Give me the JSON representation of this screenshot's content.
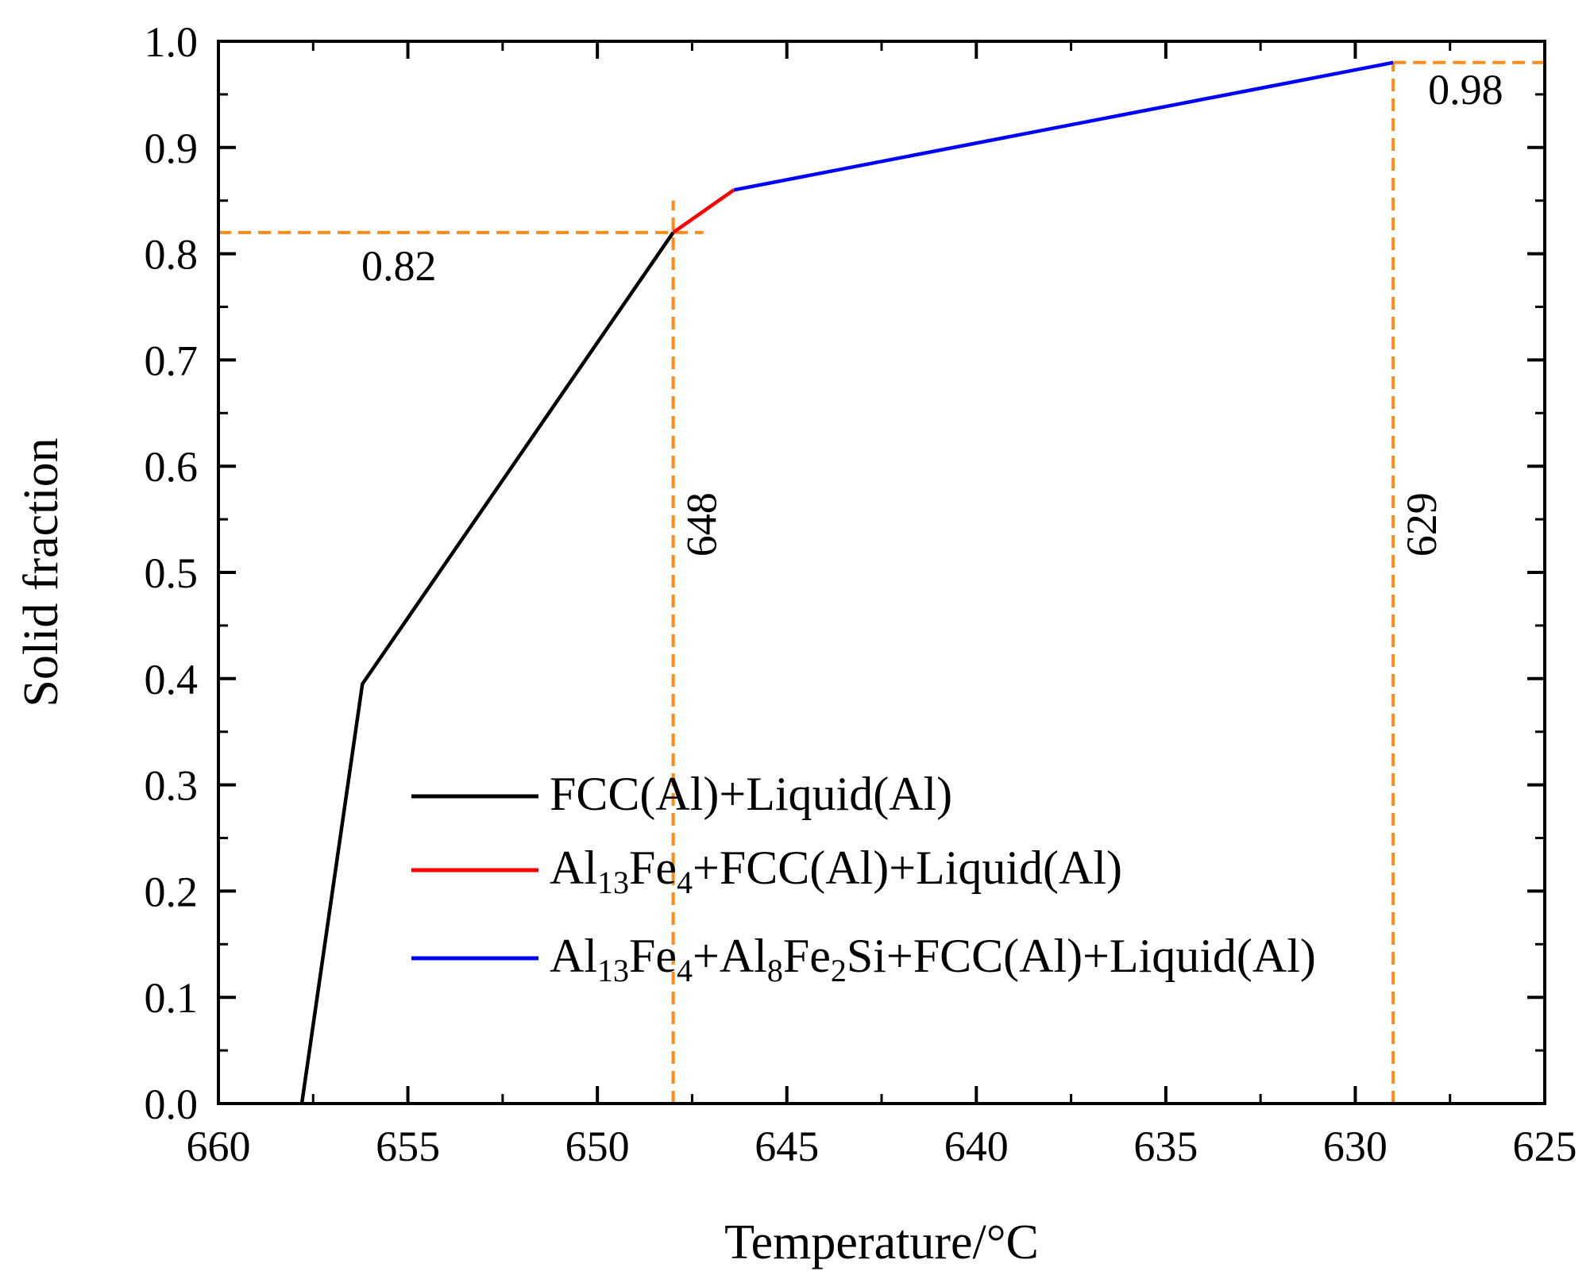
{
  "chart_data": {
    "type": "line",
    "title": "",
    "xlabel": "Temperature/°C",
    "ylabel": "Solid fraction",
    "xlim": [
      660,
      625
    ],
    "ylim": [
      0.0,
      1.0
    ],
    "xticks": [
      "660",
      "655",
      "650",
      "645",
      "640",
      "635",
      "630",
      "625"
    ],
    "yticks": [
      "0.0",
      "0.1",
      "0.2",
      "0.3",
      "0.4",
      "0.5",
      "0.6",
      "0.7",
      "0.8",
      "0.9",
      "1.0"
    ],
    "grid": false,
    "legend_position": "bottom-right",
    "series": [
      {
        "name": "FCC(Al)+Liquid(Al)",
        "color": "#000000",
        "points": [
          [
            657.8,
            0.0
          ],
          [
            656.2,
            0.395
          ],
          [
            648.0,
            0.82
          ]
        ]
      },
      {
        "name": "Al13Fe4+FCC(Al)+Liquid(Al)",
        "color": "#ff0000",
        "points": [
          [
            648.0,
            0.82
          ],
          [
            646.4,
            0.86
          ]
        ]
      },
      {
        "name": "Al13Fe4+Al8Fe2Si+FCC(Al)+Liquid(Al)",
        "color": "#0000ff",
        "points": [
          [
            646.4,
            0.86
          ],
          [
            629.0,
            0.98
          ]
        ]
      }
    ],
    "legend": [
      {
        "parts": [
          {
            "t": "FCC(Al)+Liquid(Al)",
            "s": false
          }
        ]
      },
      {
        "parts": [
          {
            "t": "Al",
            "s": false
          },
          {
            "t": "13",
            "s": true
          },
          {
            "t": "Fe",
            "s": false
          },
          {
            "t": "4",
            "s": true
          },
          {
            "t": "+FCC(Al)+Liquid(Al)",
            "s": false
          }
        ]
      },
      {
        "parts": [
          {
            "t": "Al",
            "s": false
          },
          {
            "t": "13",
            "s": true
          },
          {
            "t": "Fe",
            "s": false
          },
          {
            "t": "4",
            "s": true
          },
          {
            "t": "+Al",
            "s": false
          },
          {
            "t": "8",
            "s": true
          },
          {
            "t": "Fe",
            "s": false
          },
          {
            "t": "2",
            "s": true
          },
          {
            "t": "Si+FCC(Al)+Liquid(Al)",
            "s": false
          }
        ]
      }
    ],
    "reference_lines": {
      "color": "#ff8c1a",
      "horizontal": [
        {
          "y": 0.82,
          "x_from": 660,
          "x_to": 647.2,
          "label": "0.82"
        },
        {
          "y": 0.98,
          "x_from": 629.0,
          "x_to": 625,
          "label": "0.98"
        }
      ],
      "vertical": [
        {
          "x": 648.0,
          "y_from": 0.0,
          "y_to": 0.85,
          "label": "648"
        },
        {
          "x": 629.0,
          "y_from": 0.0,
          "y_to": 0.98,
          "label": "629"
        }
      ]
    }
  }
}
